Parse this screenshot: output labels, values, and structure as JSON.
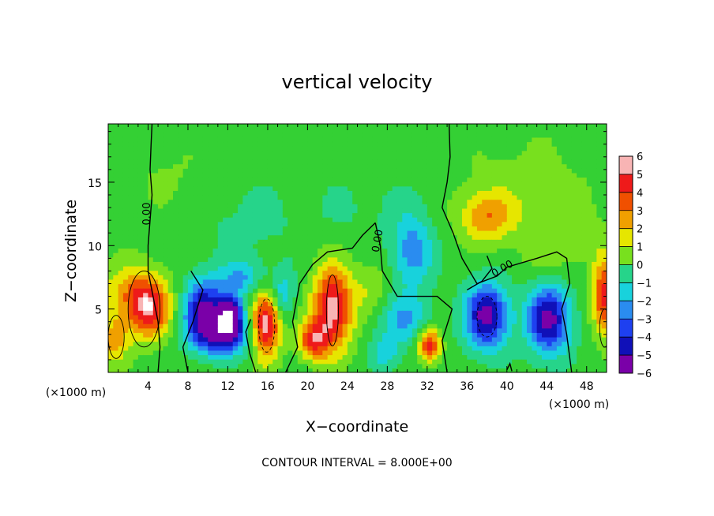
{
  "chart_data": {
    "type": "heatmap",
    "title": "vertical velocity",
    "xlabel": "X−coordinate",
    "ylabel": "Z−coordinate",
    "x_unit": "(×1000 m)",
    "xlim": [
      0,
      50
    ],
    "ylim": [
      0,
      19.6
    ],
    "x_ticks": [
      4,
      8,
      12,
      16,
      20,
      24,
      28,
      32,
      36,
      40,
      44,
      48
    ],
    "y_ticks": [
      5,
      10,
      15
    ],
    "colorbar": {
      "ticks": [
        "6",
        "5",
        "4",
        "3",
        "2",
        "1",
        "0",
        "−1",
        "−2",
        "−3",
        "−4",
        "−5",
        "−6"
      ],
      "min": -6,
      "max": 6,
      "colors": {
        "-6": "#7a00a8",
        "-5": "#1010b8",
        "-4": "#1e40f0",
        "-3": "#2a8cf0",
        "-2": "#18d2dc",
        "-1": "#26d48a",
        "0": "#34d034",
        "1": "#78e01e",
        "2": "#e6e600",
        "3": "#f0a000",
        "4": "#f05000",
        "5": "#ee1a1a",
        "6": "#f8b4b4"
      }
    },
    "contour_labels": [
      "0.00",
      "0.00",
      "0.00"
    ],
    "contour_interval_text": "CONTOUR INTERVAL = 8.000E+00",
    "features": [
      {
        "x": 1.5,
        "z": 6.5,
        "w": 1.8,
        "sx": 2.6,
        "sz": 2.2
      },
      {
        "x": 4.0,
        "z": 5.2,
        "w": 5.6,
        "sx": 2.3,
        "sz": 2.5
      },
      {
        "x": 0.6,
        "z": 2.6,
        "w": 3.0,
        "sx": 1.4,
        "sz": 1.8
      },
      {
        "x": 9.5,
        "z": 5.0,
        "w": -5.5,
        "sx": 2.0,
        "sz": 2.4
      },
      {
        "x": 12.2,
        "z": 4.5,
        "w": -6.5,
        "sx": 1.4,
        "sz": 1.6
      },
      {
        "x": 11.5,
        "z": 2.8,
        "w": -4.5,
        "sx": 3.0,
        "sz": 1.5
      },
      {
        "x": 13.5,
        "z": 7.5,
        "w": -2.5,
        "sx": 2.5,
        "sz": 1.5
      },
      {
        "x": 15.8,
        "z": 3.8,
        "w": 6.5,
        "sx": 1.5,
        "sz": 2.6
      },
      {
        "x": 17.5,
        "z": 6.0,
        "w": -2.5,
        "sx": 1.2,
        "sz": 2.0
      },
      {
        "x": 22.5,
        "z": 5.0,
        "w": 6.2,
        "sx": 2.0,
        "sz": 3.3
      },
      {
        "x": 20.5,
        "z": 2.5,
        "w": 4.0,
        "sx": 1.5,
        "sz": 1.5
      },
      {
        "x": 26.5,
        "z": 6.5,
        "w": 1.5,
        "sx": 1.8,
        "sz": 2.5
      },
      {
        "x": 29.5,
        "z": 4.2,
        "w": -2.5,
        "sx": 3.0,
        "sz": 2.0
      },
      {
        "x": 30.5,
        "z": 9.5,
        "w": -3.2,
        "sx": 2.0,
        "sz": 2.8
      },
      {
        "x": 27.8,
        "z": 1.5,
        "w": -2.0,
        "sx": 1.5,
        "sz": 1.2
      },
      {
        "x": 32.2,
        "z": 2.2,
        "w": 5.5,
        "sx": 1.1,
        "sz": 1.3
      },
      {
        "x": 38.0,
        "z": 4.5,
        "w": -6.0,
        "sx": 2.2,
        "sz": 2.6
      },
      {
        "x": 37.8,
        "z": 12.3,
        "w": 3.2,
        "sx": 2.6,
        "sz": 2.0
      },
      {
        "x": 44.2,
        "z": 4.2,
        "w": -5.8,
        "sx": 2.2,
        "sz": 2.8
      },
      {
        "x": 45.0,
        "z": 10.5,
        "w": 1.3,
        "sx": 4.5,
        "sz": 3.0
      },
      {
        "x": 49.8,
        "z": 6.0,
        "w": 5.0,
        "sx": 1.2,
        "sz": 3.0
      },
      {
        "x": 6.0,
        "z": 15.5,
        "w": 0.6,
        "sx": 4.0,
        "sz": 3.0
      },
      {
        "x": 14.0,
        "z": 12.0,
        "w": -0.8,
        "sx": 5.0,
        "sz": 3.0
      },
      {
        "x": 26.0,
        "z": 13.0,
        "w": -0.6,
        "sx": 6.0,
        "sz": 3.0
      },
      {
        "x": 42.0,
        "z": 15.0,
        "w": 0.9,
        "sx": 6.0,
        "sz": 3.5
      }
    ],
    "grid": false
  }
}
